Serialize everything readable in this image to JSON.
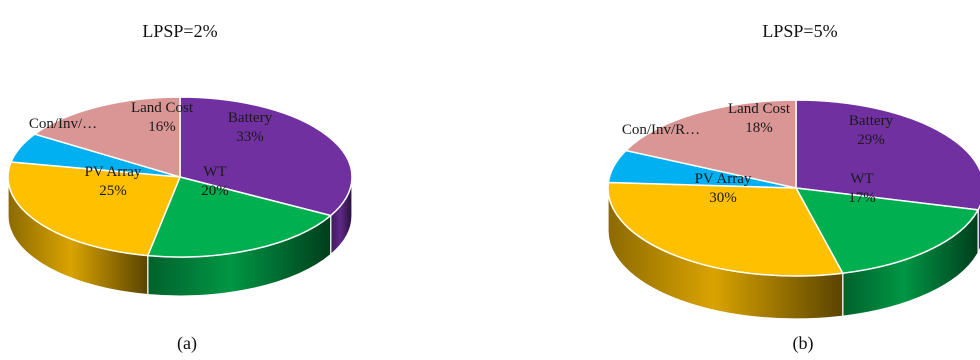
{
  "chart_data": [
    {
      "type": "pie",
      "title": "LPSP=2%",
      "caption": "(a)",
      "slices": [
        {
          "label": "Battery",
          "display_label": "Battery",
          "value_label": "33%",
          "value": 33,
          "color": "#7030a0"
        },
        {
          "label": "WT",
          "display_label": "WT",
          "value_label": "20%",
          "value": 20,
          "color": "#00b050"
        },
        {
          "label": "PV Array",
          "display_label": "PV Array",
          "value_label": "25%",
          "value": 25,
          "color": "#ffc000"
        },
        {
          "label": "Con/Inv/…",
          "display_label": "Con/Inv/…",
          "value_label": "",
          "value": 6,
          "color": "#00b0f0"
        },
        {
          "label": "Land Cost",
          "display_label": "Land Cost",
          "value_label": "16%",
          "value": 16,
          "color": "#d99694"
        }
      ]
    },
    {
      "type": "pie",
      "title": "LPSP=5%",
      "caption": "(b)",
      "slices": [
        {
          "label": "Battery",
          "display_label": "Battery",
          "value_label": "29%",
          "value": 29,
          "color": "#7030a0"
        },
        {
          "label": "WT",
          "display_label": "WT",
          "value_label": "17%",
          "value": 17,
          "color": "#00b050"
        },
        {
          "label": "PV Array",
          "display_label": "PV Array",
          "value_label": "30%",
          "value": 30,
          "color": "#ffc000"
        },
        {
          "label": "Con/Inv/R…",
          "display_label": "Con/Inv/R…",
          "value_label": "",
          "value": 6,
          "color": "#00b0f0"
        },
        {
          "label": "Land Cost",
          "display_label": "Land Cost",
          "value_label": "18%",
          "value": 18,
          "color": "#d99694"
        }
      ]
    }
  ]
}
